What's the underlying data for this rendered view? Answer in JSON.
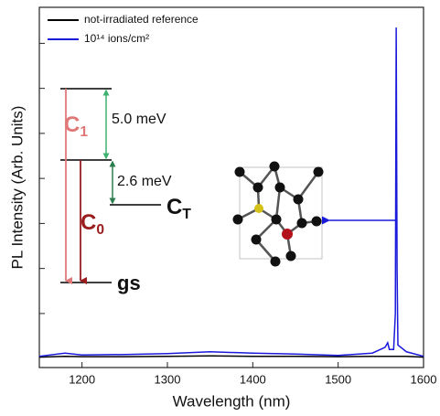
{
  "chart_data": {
    "type": "line",
    "x_label": "Wavelength (nm)",
    "y_label": "PL Intensity (Arb. Units)",
    "xlim": [
      1150,
      1600
    ],
    "xticks": [
      1200,
      1300,
      1400,
      1500,
      1600
    ],
    "ylim": [
      -0.2,
      7.8
    ],
    "yticks": [
      1,
      2,
      3,
      4,
      5,
      6,
      7
    ],
    "legend": "upper left",
    "x": [
      1150,
      1180,
      1200,
      1250,
      1300,
      1350,
      1400,
      1450,
      1500,
      1540,
      1555,
      1558,
      1560,
      1565,
      1567,
      1568,
      1569,
      1570,
      1580,
      1600
    ],
    "series": [
      {
        "name": "not-irradiated reference",
        "color": "#000000",
        "values": [
          0.03,
          0.05,
          0.04,
          0.04,
          0.05,
          0.06,
          0.05,
          0.05,
          0.04,
          0.05,
          0.05,
          0.05,
          0.05,
          0.05,
          0.05,
          0.05,
          0.05,
          0.05,
          0.05,
          0.03
        ]
      },
      {
        "name": "10¹⁴ ions/cm²",
        "color": "#1a1adb",
        "values": [
          0.05,
          0.12,
          0.08,
          0.09,
          0.11,
          0.15,
          0.12,
          0.1,
          0.07,
          0.12,
          0.25,
          0.35,
          0.2,
          0.2,
          1.0,
          7.35,
          2.0,
          0.3,
          0.15,
          0.05
        ]
      }
    ],
    "annotations": {
      "levels": [
        {
          "symbol": "C",
          "sub": "1",
          "color": "#e07878"
        },
        {
          "symbol": "C",
          "sub": "0",
          "color": "#9b1c1c"
        },
        {
          "symbol": "C",
          "sub": "T",
          "color": "#111111"
        },
        {
          "symbol": "gs",
          "color": "#111111"
        }
      ],
      "gaps": [
        {
          "label": "5.0 meV",
          "color": "#3cb371"
        },
        {
          "label": "2.6 meV",
          "color": "#2e7d4f"
        }
      ]
    }
  }
}
